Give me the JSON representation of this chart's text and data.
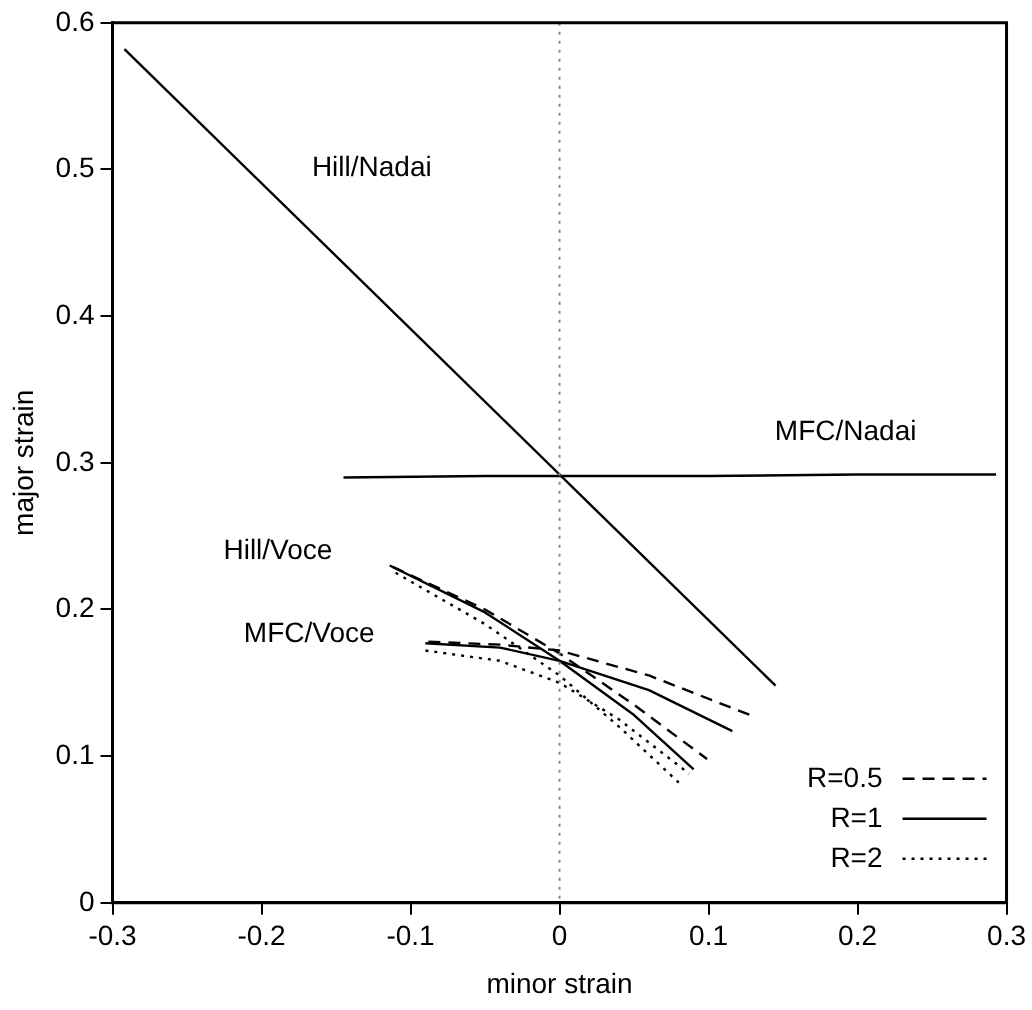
{
  "chart_data": {
    "type": "line",
    "xlabel": "minor strain",
    "ylabel": "major strain",
    "xlim": [
      -0.3,
      0.3
    ],
    "ylim": [
      0,
      0.6
    ],
    "xticks": [
      -0.3,
      -0.2,
      -0.1,
      0,
      0.1,
      0.2,
      0.3
    ],
    "yticks": [
      0,
      0.1,
      0.2,
      0.3,
      0.4,
      0.5,
      0.6
    ],
    "grid": false,
    "legend": "bottom right",
    "marker": "none",
    "series": [
      {
        "color": "#000000",
        "line_style": "solid",
        "x": [
          -0.292,
          0.145
        ],
        "values": [
          0.582,
          0.148
        ]
      },
      {
        "color": "#000000",
        "line_style": "solid",
        "x": [
          -0.145,
          -0.05,
          0.1,
          0.2,
          0.293
        ],
        "values": [
          0.29,
          0.291,
          0.291,
          0.292,
          0.292
        ]
      },
      {
        "name": "R=0.5",
        "color": "#000000",
        "line_style": "dashed",
        "x": [
          -0.112,
          -0.05,
          0,
          0.05,
          0.099
        ],
        "values": [
          0.229,
          0.2,
          0.17,
          0.135,
          0.098
        ]
      },
      {
        "name": "R=1",
        "color": "#000000",
        "line_style": "solid",
        "x": [
          -0.114,
          -0.05,
          0,
          0.05,
          0.09
        ],
        "values": [
          0.23,
          0.198,
          0.165,
          0.128,
          0.091
        ]
      },
      {
        "name": "R=2",
        "color": "#000000",
        "line_style": "dotted",
        "x": [
          -0.11,
          -0.05,
          0,
          0.04,
          0.08
        ],
        "values": [
          0.225,
          0.19,
          0.155,
          0.12,
          0.082
        ]
      },
      {
        "color": "#000000",
        "line_style": "dashed",
        "x": [
          -0.088,
          -0.04,
          0,
          0.06,
          0.128
        ],
        "values": [
          0.178,
          0.176,
          0.172,
          0.155,
          0.128
        ]
      },
      {
        "color": "#000000",
        "line_style": "solid",
        "x": [
          -0.09,
          -0.04,
          0,
          0.06,
          0.116
        ],
        "values": [
          0.177,
          0.174,
          0.165,
          0.145,
          0.117
        ]
      },
      {
        "color": "#000000",
        "line_style": "dotted",
        "x": [
          -0.09,
          -0.04,
          0,
          0.04,
          0.087
        ],
        "values": [
          0.172,
          0.165,
          0.15,
          0.125,
          0.088
        ]
      }
    ],
    "ref_lines": [
      {
        "axis": "x",
        "value": 0,
        "color": "#888888",
        "line_style": "dotted"
      }
    ],
    "annotations": [
      "Hill/Nadai",
      "MFC/Nadai",
      "Hill/Voce",
      "MFC/Voce"
    ]
  }
}
